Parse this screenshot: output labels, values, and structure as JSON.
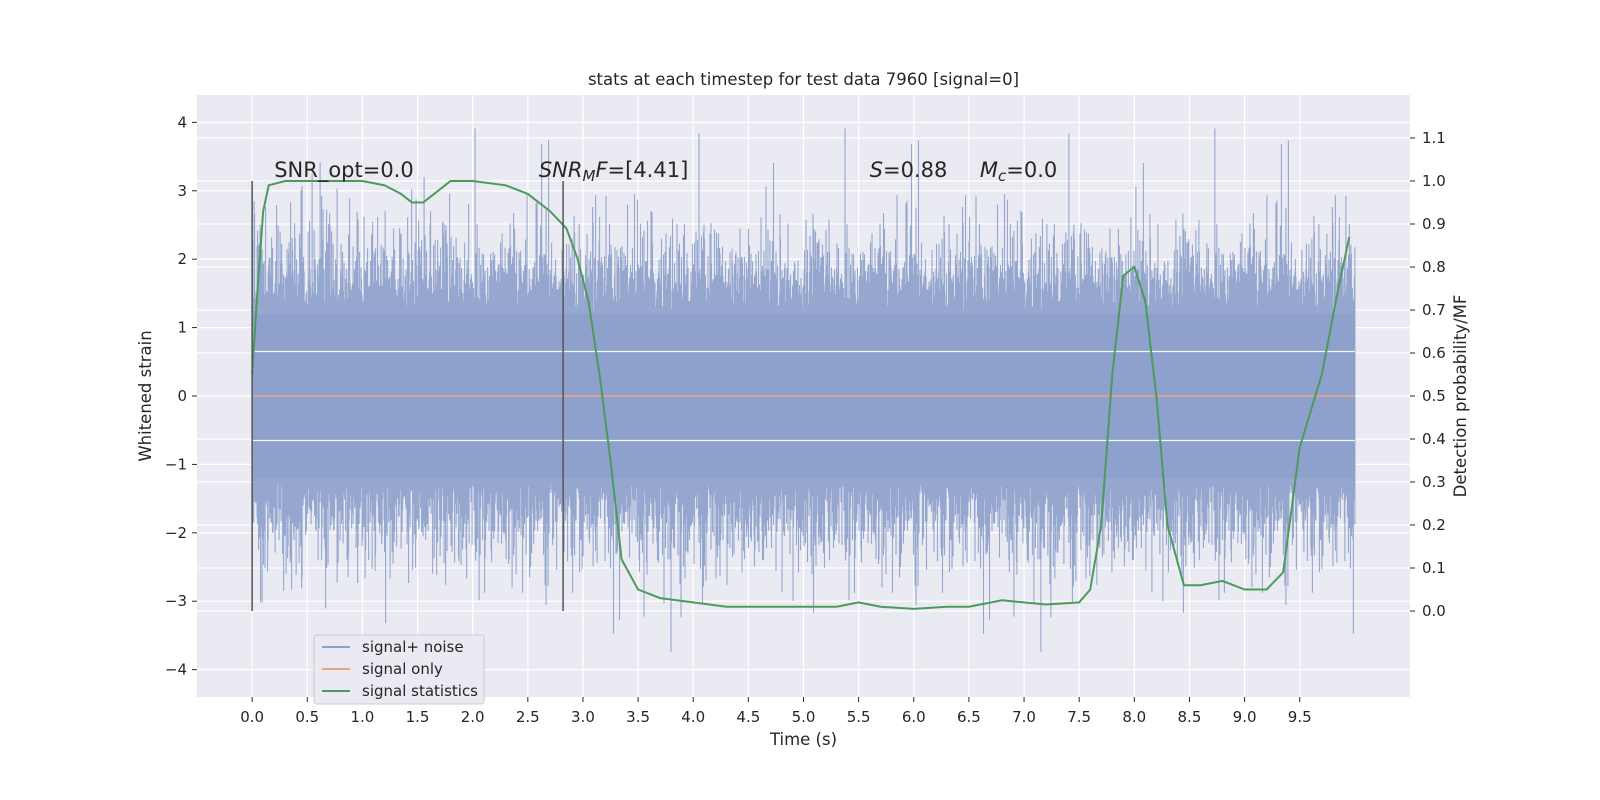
{
  "chart_data": {
    "type": "line",
    "title": "stats at each timestep for test data 7960 [signal=0]",
    "xlabel": "Time (s)",
    "ylabel": "Whitened strain",
    "y2label": "Detection probability/MF",
    "xlim": [
      -0.5,
      10.5
    ],
    "ylim": [
      -4.4,
      4.4
    ],
    "y2lim": [
      -0.2,
      1.2
    ],
    "xticks": [
      0.0,
      0.5,
      1.0,
      1.5,
      2.0,
      2.5,
      3.0,
      3.5,
      4.0,
      4.5,
      5.0,
      5.5,
      6.0,
      6.5,
      7.0,
      7.5,
      8.0,
      8.5,
      9.0,
      9.5
    ],
    "xtick_labels": [
      "0.0",
      "0.5",
      "1.0",
      "1.5",
      "2.0",
      "2.5",
      "3.0",
      "3.5",
      "4.0",
      "4.5",
      "5.0",
      "5.5",
      "6.0",
      "6.5",
      "7.0",
      "7.5",
      "8.0",
      "8.5",
      "9.0",
      "9.5"
    ],
    "yticks": [
      -4,
      -3,
      -2,
      -1,
      0,
      1,
      2,
      3,
      4
    ],
    "ytick_labels": [
      "−4",
      "−3",
      "−2",
      "−1",
      "0",
      "1",
      "2",
      "3",
      "4"
    ],
    "y2ticks": [
      0.0,
      0.1,
      0.2,
      0.3,
      0.4,
      0.5,
      0.6,
      0.7,
      0.8,
      0.9,
      1.0,
      1.1
    ],
    "y2tick_labels": [
      "0.0",
      "0.1",
      "0.2",
      "0.3",
      "0.4",
      "0.5",
      "0.6",
      "0.7",
      "0.8",
      "0.9",
      "1.0",
      "1.1"
    ],
    "grid": true,
    "legend_position": "lower-left",
    "series": [
      {
        "name": "signal+ noise",
        "color": "#8da0cb",
        "axis": "left",
        "kind": "noise",
        "x_range": [
          0.0,
          10.0
        ],
        "envelope_typical": [
          -2.0,
          2.0
        ],
        "envelope_extreme": [
          -4.0,
          4.0
        ]
      },
      {
        "name": "signal only",
        "color": "#e9a07e",
        "axis": "left",
        "x": [
          0.0,
          10.0
        ],
        "y": [
          0.0,
          0.0
        ]
      },
      {
        "name": "signal statistics",
        "color": "#4c9a5c",
        "axis": "right",
        "x": [
          0.0,
          0.05,
          0.1,
          0.15,
          0.3,
          0.6,
          1.0,
          1.2,
          1.35,
          1.45,
          1.55,
          1.65,
          1.8,
          2.0,
          2.3,
          2.5,
          2.7,
          2.85,
          2.95,
          3.05,
          3.15,
          3.25,
          3.35,
          3.5,
          3.7,
          4.0,
          4.3,
          4.7,
          5.0,
          5.3,
          5.5,
          5.7,
          6.0,
          6.3,
          6.5,
          6.8,
          7.2,
          7.5,
          7.6,
          7.7,
          7.8,
          7.9,
          8.0,
          8.1,
          8.2,
          8.3,
          8.45,
          8.6,
          8.8,
          9.0,
          9.2,
          9.35,
          9.5,
          9.7,
          9.85,
          9.95
        ],
        "y": [
          0.55,
          0.75,
          0.93,
          0.99,
          1.0,
          1.0,
          1.0,
          0.99,
          0.97,
          0.95,
          0.95,
          0.97,
          1.0,
          1.0,
          0.99,
          0.97,
          0.93,
          0.89,
          0.82,
          0.72,
          0.55,
          0.35,
          0.12,
          0.05,
          0.03,
          0.02,
          0.01,
          0.01,
          0.01,
          0.01,
          0.02,
          0.01,
          0.005,
          0.01,
          0.01,
          0.025,
          0.015,
          0.02,
          0.05,
          0.2,
          0.55,
          0.78,
          0.8,
          0.72,
          0.5,
          0.2,
          0.06,
          0.06,
          0.07,
          0.05,
          0.05,
          0.09,
          0.38,
          0.55,
          0.75,
          0.87
        ]
      }
    ],
    "vlines": [
      0.0,
      2.82
    ],
    "annotations": [
      {
        "x": 0.2,
        "y": 3.2,
        "parts": [
          {
            "text": "SNR_opt=0.0",
            "italic": false
          }
        ]
      },
      {
        "x": 2.6,
        "y": 3.2,
        "parts": [
          {
            "text": "SNR",
            "italic": true
          },
          {
            "text": "M",
            "italic": true,
            "sub": true
          },
          {
            "text": "F",
            "italic": true
          },
          {
            "text": "=[4.41]",
            "italic": false
          }
        ]
      },
      {
        "x": 5.6,
        "y": 3.2,
        "parts": [
          {
            "text": "S",
            "italic": true
          },
          {
            "text": "=0.88",
            "italic": false
          }
        ]
      },
      {
        "x": 6.6,
        "y": 3.2,
        "parts": [
          {
            "text": "M",
            "italic": true
          },
          {
            "text": "c",
            "italic": true,
            "sub": true
          },
          {
            "text": "=0.0",
            "italic": false
          }
        ]
      }
    ]
  }
}
